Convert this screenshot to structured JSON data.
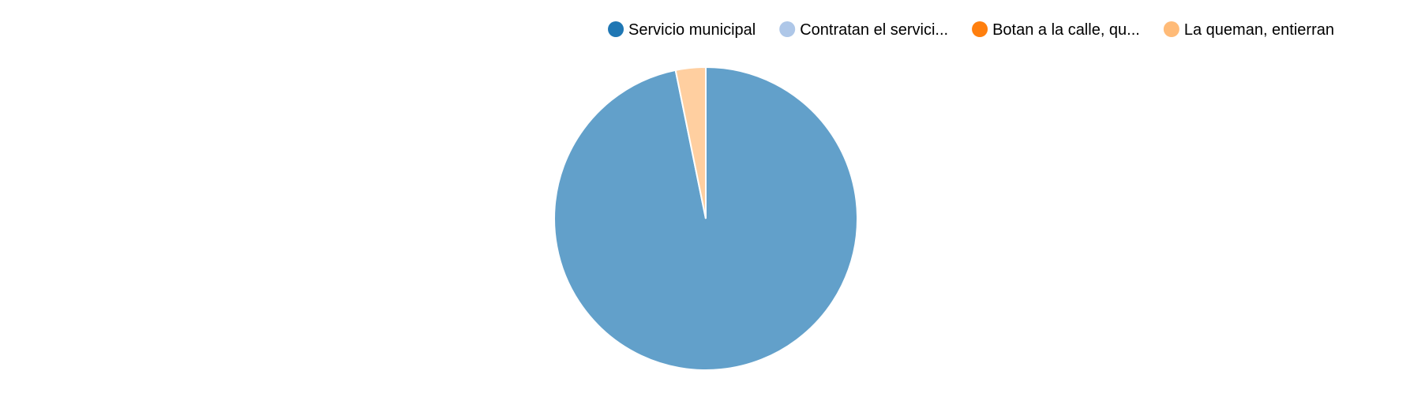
{
  "chart_data": {
    "type": "pie",
    "title": "",
    "categories": [
      "Servicio municipal",
      "Contratan el servici...",
      "Botan a la calle, qu...",
      "La queman, entierran"
    ],
    "values": [
      96.8,
      0,
      0,
      3.2
    ],
    "colors": [
      "#1f77b4",
      "#aec7e8",
      "#ff7f0e",
      "#ffbb78"
    ],
    "slice_opacity": 0.7,
    "legend": {
      "position": "top-right",
      "entries": [
        {
          "label": "Servicio municipal",
          "color": "#1f77b4"
        },
        {
          "label": "Contratan el servici...",
          "color": "#aec7e8"
        },
        {
          "label": "Botan a la calle, qu...",
          "color": "#ff7f0e"
        },
        {
          "label": "La queman, entierran",
          "color": "#ffbb78"
        }
      ]
    }
  }
}
